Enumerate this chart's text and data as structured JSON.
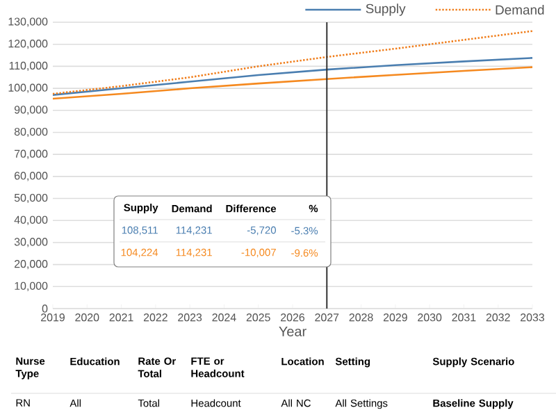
{
  "chart_data": {
    "type": "line",
    "xlabel": "Year",
    "x": [
      2019,
      2021,
      2023,
      2025,
      2027,
      2029,
      2031,
      2033
    ],
    "series": [
      {
        "name": "Supply",
        "color": "#4a7eb0",
        "line_style": "solid",
        "values": [
          97000,
          100000,
          103000,
          106000,
          108511,
          110500,
          112200,
          113800
        ]
      },
      {
        "color": "#f5891f",
        "line_style": "solid",
        "values": [
          95300,
          97500,
          100000,
          102200,
          104224,
          106100,
          107900,
          109600
        ]
      },
      {
        "name": "Demand",
        "color": "#f07d1a",
        "line_style": "dotted",
        "values": [
          97500,
          101000,
          105000,
          110000,
          114231,
          118000,
          122000,
          126000
        ]
      }
    ],
    "xlim": [
      2019,
      2033
    ],
    "xticks": [
      2019,
      2020,
      2021,
      2022,
      2023,
      2024,
      2025,
      2026,
      2027,
      2028,
      2029,
      2030,
      2031,
      2032,
      2033
    ],
    "ylim": [
      0,
      130000
    ],
    "yticks": [
      {
        "value": 0,
        "label": "0"
      },
      {
        "value": 10000,
        "label": "10,000"
      },
      {
        "value": 20000,
        "label": "20,000"
      },
      {
        "value": 30000,
        "label": "30,000"
      },
      {
        "value": 40000,
        "label": "40,000"
      },
      {
        "value": 50000,
        "label": "50,000"
      },
      {
        "value": 60000,
        "label": "60,000"
      },
      {
        "value": 70000,
        "label": "70,000"
      },
      {
        "value": 80000,
        "label": "80,000"
      },
      {
        "value": 90000,
        "label": "90,000"
      },
      {
        "value": 100000,
        "label": "100,000"
      },
      {
        "value": 110000,
        "label": "110,000"
      },
      {
        "value": 120000,
        "label": "120,000"
      },
      {
        "value": 130000,
        "label": "130,000"
      }
    ],
    "grid": "y",
    "legend": "top right",
    "ref_lines": [
      {
        "axis": "x",
        "value": 2027,
        "color": "#333333"
      }
    ],
    "annotations": [
      "Supply",
      "Demand",
      "Difference",
      "%",
      "108,511",
      "114,231",
      "-5,720",
      "-5.3%",
      "104,224",
      "114,231",
      "-10,007",
      "-9.6%",
      "Nurse Type",
      "Education",
      "Rate Or Total",
      "FTE or Headcount",
      "Location",
      "Setting",
      "Supply Scenario",
      "RN",
      "All",
      "Total",
      "Headcount",
      "All NC",
      "All Settings",
      "Baseline Supply"
    ]
  }
}
